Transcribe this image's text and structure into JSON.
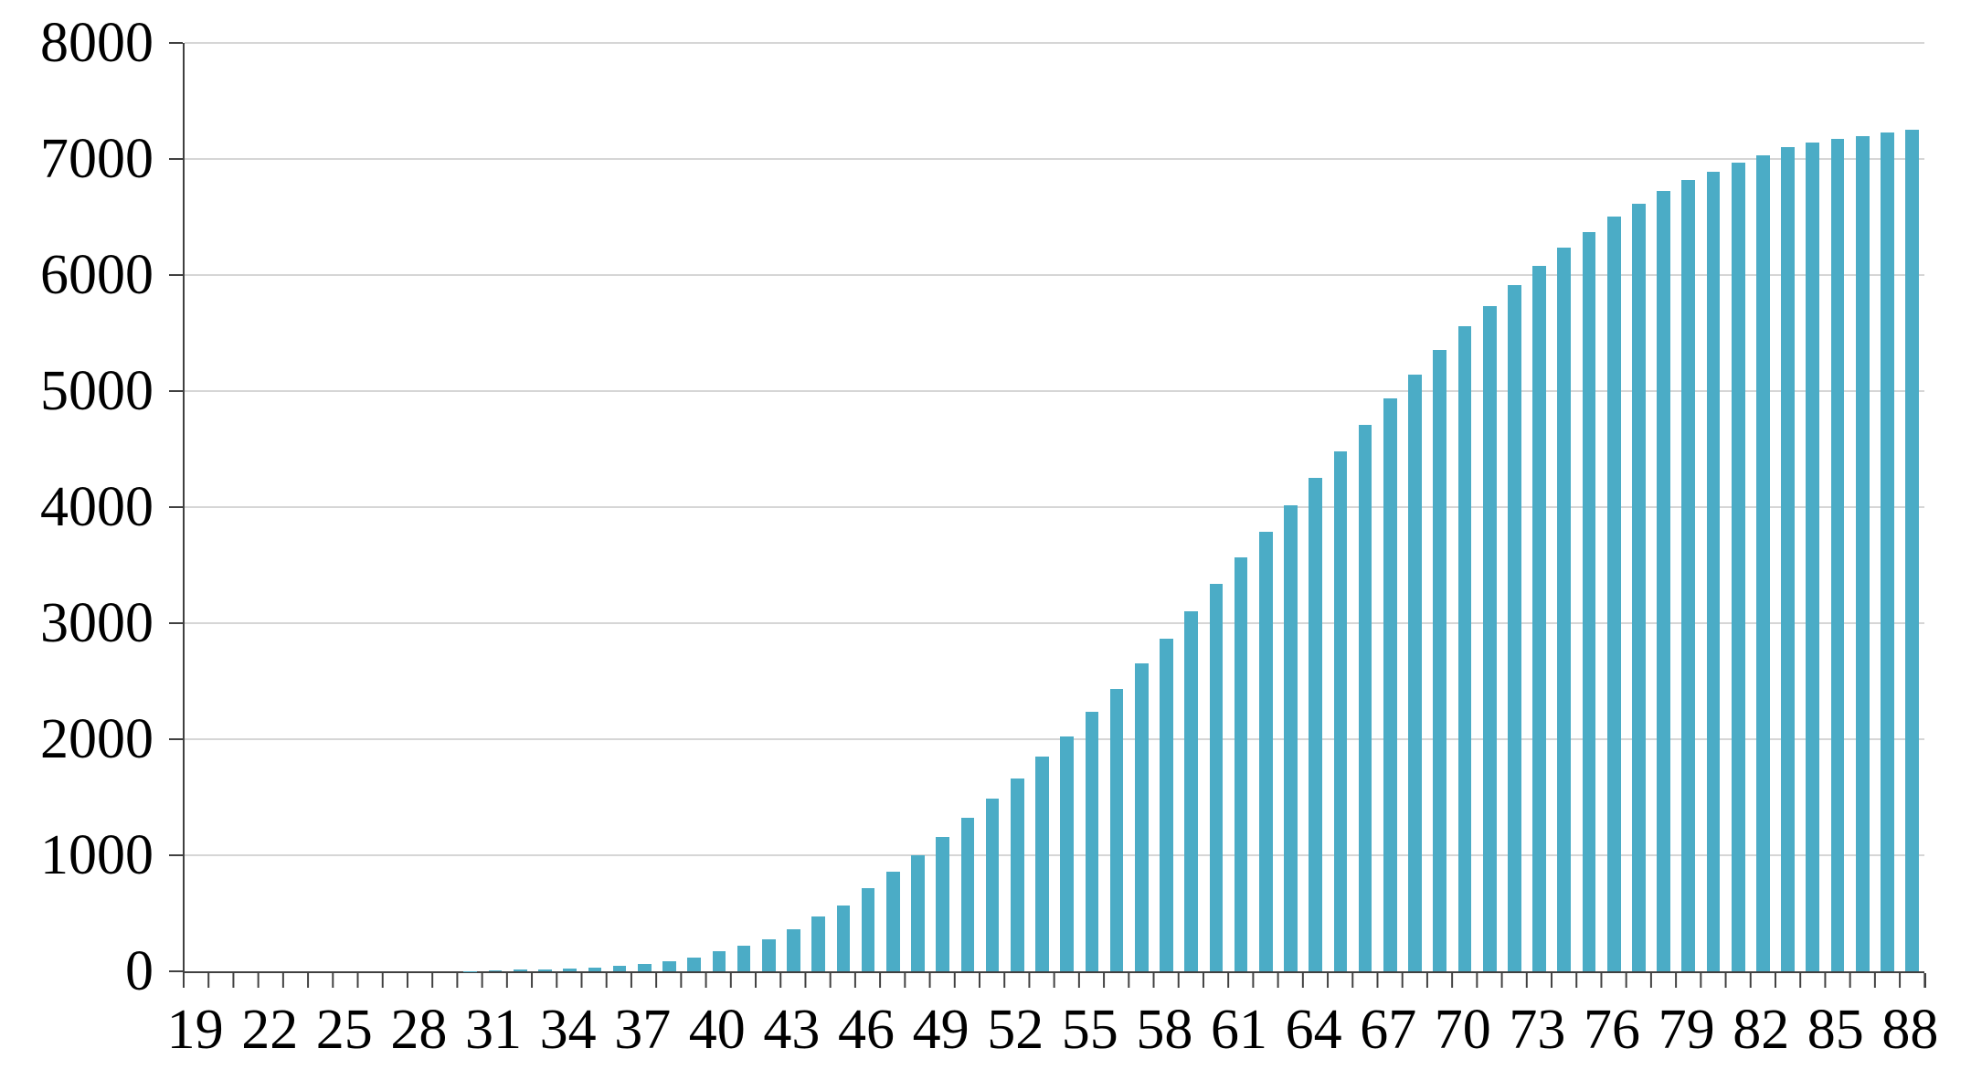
{
  "chart_data": {
    "type": "bar",
    "title": "",
    "xlabel": "",
    "ylabel": "",
    "categories": [
      19,
      20,
      21,
      22,
      23,
      24,
      25,
      26,
      27,
      28,
      29,
      30,
      31,
      32,
      33,
      34,
      35,
      36,
      37,
      38,
      39,
      40,
      41,
      42,
      43,
      44,
      45,
      46,
      47,
      48,
      49,
      50,
      51,
      52,
      53,
      54,
      55,
      56,
      57,
      58,
      59,
      60,
      61,
      62,
      63,
      64,
      65,
      66,
      67,
      68,
      69,
      70,
      71,
      72,
      73,
      74,
      75,
      76,
      77,
      78,
      79,
      80,
      81,
      82,
      83,
      84,
      85,
      86,
      87,
      88
    ],
    "values": [
      0,
      0,
      0,
      0,
      0,
      0,
      0,
      0,
      0,
      0,
      0,
      2,
      8,
      12,
      16,
      22,
      30,
      45,
      62,
      85,
      118,
      172,
      220,
      276,
      362,
      470,
      567,
      714,
      860,
      1003,
      1157,
      1323,
      1486,
      1664,
      1847,
      2026,
      2240,
      2434,
      2657,
      2866,
      3106,
      3340,
      3570,
      3790,
      4018,
      4254,
      4477,
      4708,
      4940,
      5142,
      5352,
      5556,
      5732,
      5916,
      6081,
      6236,
      6370,
      6507,
      6617,
      6722,
      6816,
      6892,
      6966,
      7030,
      7100,
      7140,
      7175,
      7200,
      7230,
      7250
    ],
    "x_tick_labels": [
      "19",
      "22",
      "25",
      "28",
      "31",
      "34",
      "37",
      "40",
      "43",
      "46",
      "49",
      "52",
      "55",
      "58",
      "61",
      "64",
      "67",
      "70",
      "73",
      "76",
      "79",
      "82",
      "85",
      "88"
    ],
    "x_label_step": 3,
    "ylim": [
      0,
      8000
    ],
    "y_tick_interval": 1000,
    "y_tick_labels": [
      "0",
      "1000",
      "2000",
      "3000",
      "4000",
      "5000",
      "6000",
      "7000",
      "8000"
    ],
    "legend": "none",
    "grid": "horizontal",
    "bar_color": "#4BACC6",
    "gridline_color": "#D6D6D6",
    "axis_color": "#404040",
    "text_color": "#000000",
    "background_color": "#FFFFFF"
  }
}
